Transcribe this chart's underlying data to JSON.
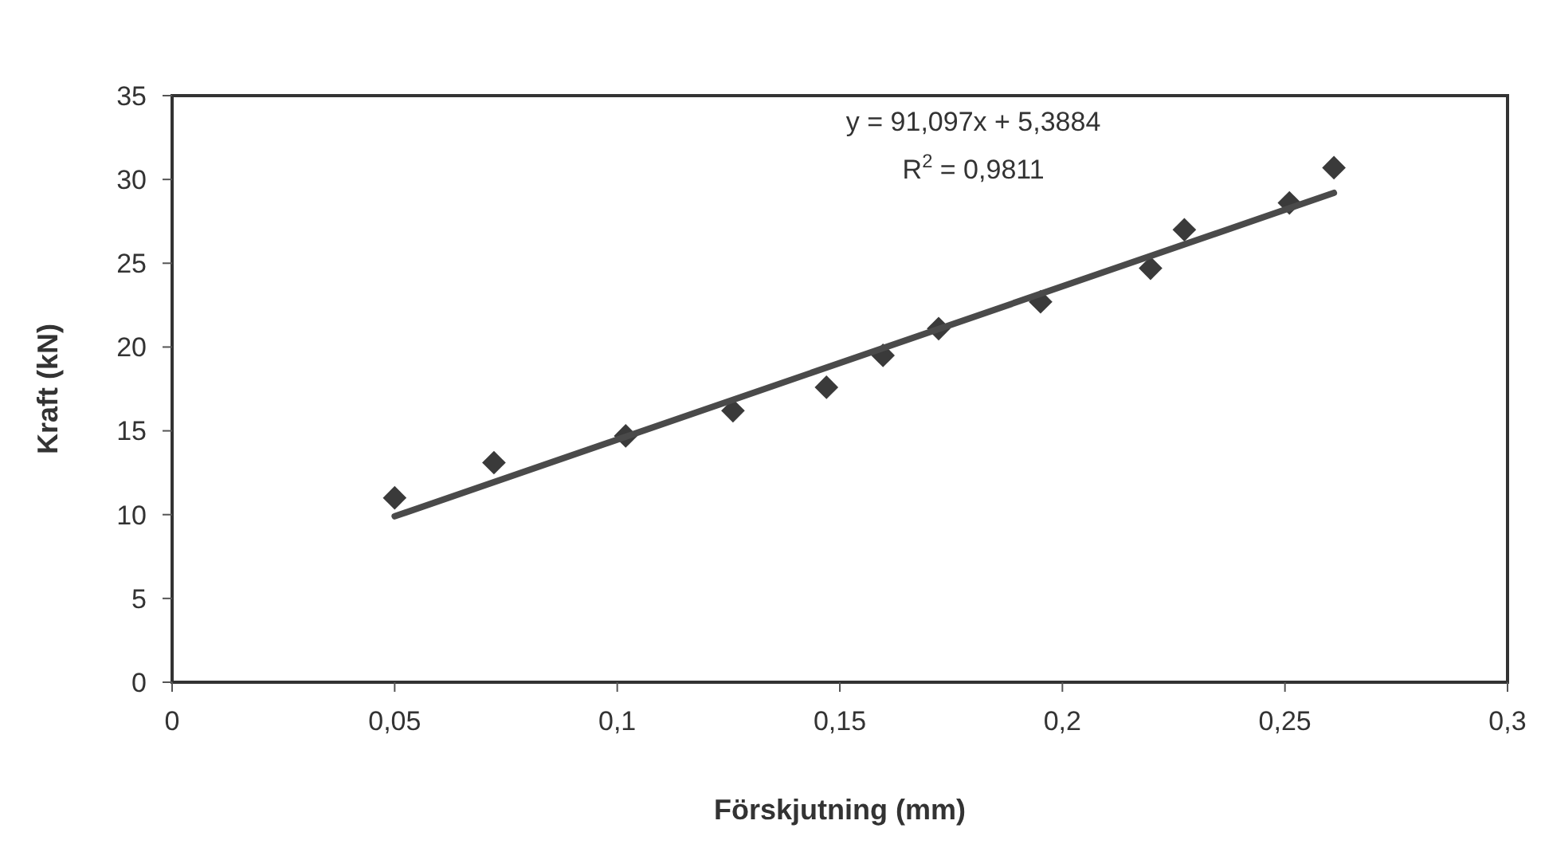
{
  "chart_data": {
    "type": "scatter",
    "xlabel": "Förskjutning (mm)",
    "ylabel": "Kraft (kN)",
    "xlim": [
      0,
      0.3
    ],
    "xticks": [
      {
        "value": 0,
        "label": "0"
      },
      {
        "value": 0.05,
        "label": "0,05"
      },
      {
        "value": 0.1,
        "label": "0,1"
      },
      {
        "value": 0.15,
        "label": "0,15"
      },
      {
        "value": 0.2,
        "label": "0,2"
      },
      {
        "value": 0.25,
        "label": "0,25"
      },
      {
        "value": 0.3,
        "label": "0,3"
      }
    ],
    "ylim": [
      0,
      35
    ],
    "yticks": [
      0,
      5,
      10,
      15,
      20,
      25,
      30,
      35
    ],
    "grid": false,
    "series": [
      {
        "marker": "diamond",
        "color": "#3a3a3a",
        "x": [
          0.05,
          0.0723,
          0.1019,
          0.126,
          0.147,
          0.1597,
          0.1722,
          0.1951,
          0.2198,
          0.2274,
          0.251,
          0.261
        ],
        "values": [
          11.0,
          13.1,
          14.7,
          16.2,
          17.6,
          19.5,
          21.1,
          22.7,
          24.7,
          27.0,
          28.6,
          30.7
        ]
      },
      {
        "type": "line",
        "marker": "none",
        "color": "#4a4a4a",
        "x": [
          0.05,
          0.261
        ],
        "values": [
          9.9,
          29.2
        ]
      }
    ],
    "annotations": [
      "y = 91,097x + 5,3884",
      "R$^{2}$ = 0,9811"
    ]
  }
}
